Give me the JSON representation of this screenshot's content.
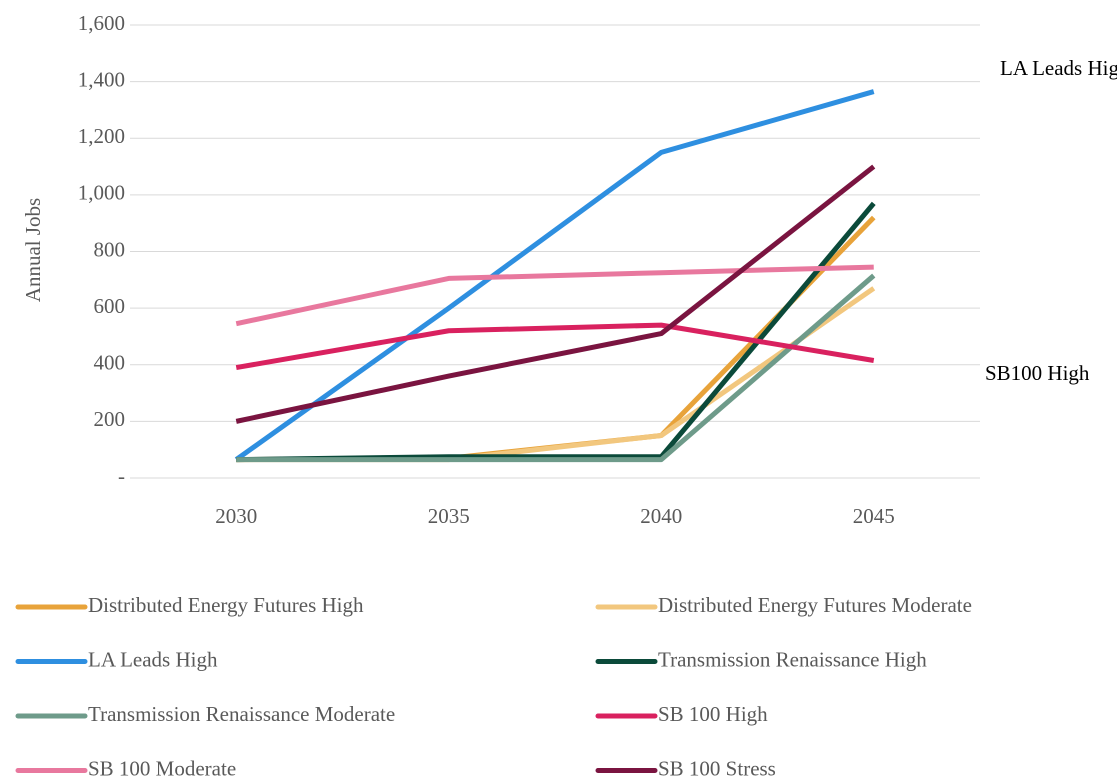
{
  "chart_data": {
    "type": "line",
    "y_label": "Annual Jobs",
    "categories": [
      "2030",
      "2035",
      "2040",
      "2045"
    ],
    "series": [
      {
        "name": "Distributed Energy Futures High",
        "color": "#e8a33a",
        "values": [
          65,
          70,
          150,
          920
        ]
      },
      {
        "name": "Distributed Energy Futures Moderate",
        "color": "#f2c77e",
        "values": [
          65,
          65,
          150,
          670
        ]
      },
      {
        "name": "LA Leads High",
        "color": "#2e8fe0",
        "values": [
          65,
          600,
          1150,
          1365
        ]
      },
      {
        "name": "Transmission Renaissance High",
        "color": "#0b4a3a",
        "values": [
          65,
          75,
          75,
          970
        ]
      },
      {
        "name": "Transmission Renaissance Moderate",
        "color": "#6e9b8a",
        "values": [
          65,
          65,
          65,
          715
        ]
      },
      {
        "name": "SB 100 High",
        "color": "#d9215f",
        "values": [
          390,
          520,
          540,
          415
        ]
      },
      {
        "name": "SB 100 Moderate",
        "color": "#e8789e",
        "values": [
          545,
          705,
          725,
          745
        ]
      },
      {
        "name": "SB 100 Stress",
        "color": "#7a1440",
        "values": [
          200,
          360,
          510,
          1100
        ]
      }
    ],
    "annotations": [
      "LA Leads High",
      "SB100 High"
    ],
    "ylim": [
      0,
      1600
    ],
    "yticks": [
      {
        "value": 0,
        "label": "-"
      },
      200,
      400,
      600,
      800,
      {
        "value": 1000,
        "label": "1,000"
      },
      {
        "value": 1200,
        "label": "1,200"
      },
      {
        "value": 1400,
        "label": "1,400"
      },
      {
        "value": 1600,
        "label": "1,600"
      }
    ],
    "grid": true
  }
}
